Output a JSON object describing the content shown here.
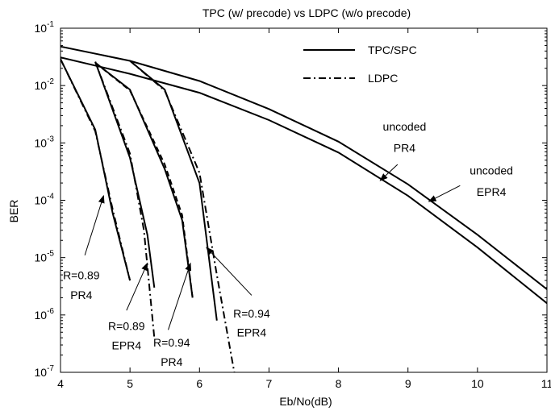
{
  "chart_data": {
    "type": "line",
    "title": "TPC (w/ precode) vs LDPC (w/o precode)",
    "xlabel": "Eb/No(dB)",
    "ylabel": "BER",
    "xlim": [
      4,
      11
    ],
    "ylim": [
      1e-07,
      0.1
    ],
    "yscale": "log",
    "grid": false,
    "legend_position": "top-right",
    "x_ticks": [
      "4",
      "5",
      "6",
      "7",
      "8",
      "9",
      "10",
      "11"
    ],
    "y_ticks": [
      {
        "base": "10",
        "exp": "-1",
        "value": 0.1
      },
      {
        "base": "10",
        "exp": "-2",
        "value": 0.01
      },
      {
        "base": "10",
        "exp": "-3",
        "value": 0.001
      },
      {
        "base": "10",
        "exp": "-4",
        "value": 0.0001
      },
      {
        "base": "10",
        "exp": "-5",
        "value": 1e-05
      },
      {
        "base": "10",
        "exp": "-6",
        "value": 1e-06
      },
      {
        "base": "10",
        "exp": "-7",
        "value": 1e-07
      }
    ],
    "legend": [
      {
        "label": "TPC/SPC",
        "style": "solid"
      },
      {
        "label": "LDPC",
        "style": "dashdot"
      }
    ],
    "series": [
      {
        "style": "solid",
        "points": [
          [
            4,
            0.048
          ],
          [
            5,
            0.027
          ],
          [
            6,
            0.012
          ],
          [
            7,
            0.0039
          ],
          [
            8,
            0.00105
          ],
          [
            9,
            0.00019
          ],
          [
            10,
            2.5e-05
          ],
          [
            11,
            2.8e-06
          ]
        ]
      },
      {
        "style": "solid",
        "points": [
          [
            4,
            0.031
          ],
          [
            5,
            0.016
          ],
          [
            6,
            0.0075
          ],
          [
            7,
            0.0025
          ],
          [
            8,
            0.00068
          ],
          [
            9,
            0.00012
          ],
          [
            10,
            1.5e-05
          ],
          [
            11,
            1.6e-06
          ]
        ]
      },
      {
        "style": "solid",
        "points": [
          [
            4,
            0.029
          ],
          [
            4.5,
            0.0017
          ],
          [
            4.75,
            6e-05
          ],
          [
            5,
            4e-06
          ]
        ]
      },
      {
        "style": "dashdot",
        "points": [
          [
            4,
            0.029
          ],
          [
            4.5,
            0.0016
          ],
          [
            4.75,
            7e-05
          ],
          [
            5,
            4e-06
          ]
        ]
      },
      {
        "style": "solid",
        "points": [
          [
            4.5,
            0.026
          ],
          [
            5,
            0.00055
          ],
          [
            5.25,
            2.5e-05
          ],
          [
            5.35,
            3e-06
          ]
        ]
      },
      {
        "style": "dashdot",
        "points": [
          [
            4.5,
            0.026
          ],
          [
            5,
            0.00065
          ],
          [
            5.2,
            3e-05
          ],
          [
            5.35,
            4e-07
          ]
        ]
      },
      {
        "style": "solid",
        "points": [
          [
            4.5,
            0.025
          ],
          [
            5,
            0.0085
          ],
          [
            5.5,
            0.00035
          ],
          [
            5.75,
            4.5e-05
          ],
          [
            5.9,
            2e-06
          ]
        ]
      },
      {
        "style": "dashed",
        "points": [
          [
            4.5,
            0.025
          ],
          [
            5,
            0.0082
          ],
          [
            5.5,
            0.00042
          ],
          [
            5.75,
            5.5e-05
          ],
          [
            5.9,
            2e-06
          ]
        ]
      },
      {
        "style": "solid",
        "points": [
          [
            5,
            0.027
          ],
          [
            5.5,
            0.0085
          ],
          [
            6,
            0.0002
          ],
          [
            6.25,
            8e-07
          ]
        ]
      },
      {
        "style": "dashdot",
        "points": [
          [
            5,
            0.027
          ],
          [
            5.5,
            0.0082
          ],
          [
            6,
            0.0003
          ],
          [
            6.25,
            5e-06
          ],
          [
            6.5,
            1e-07
          ]
        ]
      }
    ],
    "annotations": [
      {
        "lines": [
          "uncoded",
          "PR4"
        ],
        "text_x": 8.95,
        "text_y_lines": [
          0.00165,
          0.0007
        ],
        "arrow_from": [
          8.85,
          0.00042
        ],
        "arrow_to": [
          8.6,
          0.00022
        ]
      },
      {
        "lines": [
          "uncoded",
          "EPR4"
        ],
        "text_x": 10.2,
        "text_y_lines": [
          0.00028,
          0.00012
        ],
        "arrow_from": [
          9.75,
          0.00018
        ],
        "arrow_to": [
          9.3,
          9.5e-05
        ]
      },
      {
        "lines": [
          "R=0.89",
          "PR4"
        ],
        "text_x": 4.3,
        "text_y_lines": [
          4.2e-06,
          1.9e-06
        ],
        "arrow_from": [
          4.35,
          1.1e-05
        ],
        "arrow_to": [
          4.62,
          0.00012
        ]
      },
      {
        "lines": [
          "R=0.89",
          "EPR4"
        ],
        "text_x": 4.95,
        "text_y_lines": [
          5.5e-07,
          2.5e-07
        ],
        "arrow_from": [
          4.95,
          1.2e-06
        ],
        "arrow_to": [
          5.25,
          8e-06
        ]
      },
      {
        "lines": [
          "R=0.94",
          "PR4"
        ],
        "text_x": 5.6,
        "text_y_lines": [
          2.8e-07,
          1.3e-07
        ],
        "arrow_from": [
          5.55,
          5.5e-07
        ],
        "arrow_to": [
          5.87,
          8e-06
        ]
      },
      {
        "lines": [
          "R=0.94",
          "EPR4"
        ],
        "text_x": 6.75,
        "text_y_lines": [
          9e-07,
          4.2e-07
        ],
        "arrow_from": [
          6.75,
          2.2e-06
        ],
        "arrow_to": [
          6.1,
          1.5e-05
        ]
      }
    ]
  }
}
